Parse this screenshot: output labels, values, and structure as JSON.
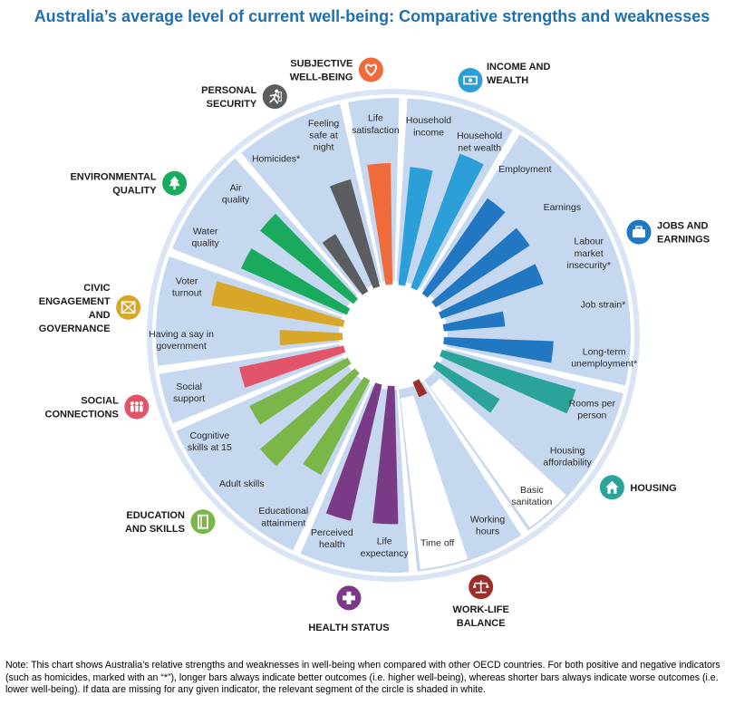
{
  "title": "Australia’s average level of current well-being: Comparative strengths and weaknesses",
  "note": "Note: This chart shows Australia’s relative strengths and weaknesses in well-being when compared with other OECD countries. For both positive and negative indicators (such as homicides, marked with an “*”), longer bars always indicate better outcomes (i.e. higher well-being), whereas shorter bars always indicate worse outcomes (i.e. lower well-being). If data are missing for any given indicator, the relevant segment of the circle is shaded in white.",
  "colors": {
    "segment_fill": "#c6d8f0",
    "ring": "#d9e5f5",
    "title": "#1f6fb2"
  },
  "chart_data": {
    "type": "radial-bar",
    "title": "Australia’s average level of current well-being: Comparative strengths and weaknesses",
    "scale": [
      0,
      1
    ],
    "dimensions": [
      {
        "name": "SUBJECTIVE WELL-BEING",
        "label_lines": [
          "SUBJECTIVE",
          "WELL-BEING"
        ],
        "icon": "heart-icon",
        "color": "#ef6b3b",
        "indicators": [
          {
            "label_lines": [
              "Life",
              "satisfaction"
            ],
            "value": 0.82,
            "missing": false
          }
        ]
      },
      {
        "name": "INCOME AND WEALTH",
        "label_lines": [
          "INCOME AND",
          "WEALTH"
        ],
        "icon": "money-icon",
        "color": "#2d9fd8",
        "indicators": [
          {
            "label_lines": [
              "Household",
              "income"
            ],
            "value": 0.8,
            "missing": false
          },
          {
            "label_lines": [
              "Household",
              "net wealth"
            ],
            "value": 0.96,
            "missing": false
          }
        ]
      },
      {
        "name": "JOBS AND EARNINGS",
        "label_lines": [
          "JOBS AND",
          "EARNINGS"
        ],
        "icon": "briefcase-icon",
        "color": "#2277c2",
        "indicators": [
          {
            "label_lines": [
              "Employment"
            ],
            "value": 0.78,
            "missing": false
          },
          {
            "label_lines": [
              "Earnings"
            ],
            "value": 0.76,
            "missing": false
          },
          {
            "label_lines": [
              "Labour",
              "market",
              "insecurity*"
            ],
            "value": 0.73,
            "missing": false
          },
          {
            "label_lines": [
              "Job strain*"
            ],
            "value": 0.42,
            "missing": false
          },
          {
            "label_lines": [
              "Long-term",
              "unemployment*"
            ],
            "value": 0.74,
            "missing": false
          }
        ]
      },
      {
        "name": "HOUSING",
        "label_lines": [
          "HOUSING"
        ],
        "icon": "house-icon",
        "color": "#2aa39a",
        "indicators": [
          {
            "label_lines": [
              "Rooms per",
              "person"
            ],
            "value": 0.94,
            "missing": false
          },
          {
            "label_lines": [
              "Housing",
              "affordability"
            ],
            "value": 0.5,
            "missing": false
          },
          {
            "label_lines": [
              "Basic",
              "sanitation"
            ],
            "value": 0,
            "missing": true
          }
        ]
      },
      {
        "name": "WORK-LIFE BALANCE",
        "label_lines": [
          "WORK-LIFE",
          "BALANCE"
        ],
        "icon": "scales-icon",
        "color": "#9b2f29",
        "indicators": [
          {
            "label_lines": [
              "Working",
              "hours"
            ],
            "value": 0.12,
            "missing": false
          },
          {
            "label_lines": [
              "Time off"
            ],
            "value": 0,
            "missing": true
          }
        ]
      },
      {
        "name": "HEALTH STATUS",
        "label_lines": [
          "HEALTH STATUS"
        ],
        "icon": "cross-icon",
        "color": "#7a3a86",
        "indicators": [
          {
            "label_lines": [
              "Life",
              "expectancy"
            ],
            "value": 0.93,
            "missing": false
          },
          {
            "label_lines": [
              "Perceived",
              "health"
            ],
            "value": 0.94,
            "missing": false
          }
        ]
      },
      {
        "name": "EDUCATION AND SKILLS",
        "label_lines": [
          "EDUCATION",
          "AND SKILLS"
        ],
        "icon": "book-icon",
        "color": "#7ab648",
        "indicators": [
          {
            "label_lines": [
              "Educational",
              "attainment"
            ],
            "value": 0.72,
            "missing": false
          },
          {
            "label_lines": [
              "Adult skills"
            ],
            "value": 0.84,
            "missing": false
          },
          {
            "label_lines": [
              "Cognitive",
              "skills at 15"
            ],
            "value": 0.74,
            "missing": false
          }
        ]
      },
      {
        "name": "SOCIAL CONNECTIONS",
        "label_lines": [
          "SOCIAL",
          "CONNECTIONS"
        ],
        "icon": "people-icon",
        "color": "#e2546a",
        "indicators": [
          {
            "label_lines": [
              "Social",
              "support"
            ],
            "value": 0.72,
            "missing": false
          }
        ]
      },
      {
        "name": "CIVIC ENGAGEMENT AND GOVERNANCE",
        "label_lines": [
          "CIVIC",
          "ENGAGEMENT",
          "AND",
          "GOVERNANCE"
        ],
        "icon": "ballot-icon",
        "color": "#d9a728",
        "indicators": [
          {
            "label_lines": [
              "Having a say in",
              "government"
            ],
            "value": 0.43,
            "missing": false
          },
          {
            "label_lines": [
              "Voter",
              "turnout"
            ],
            "value": 0.9,
            "missing": false
          }
        ]
      },
      {
        "name": "ENVIRONMENTAL QUALITY",
        "label_lines": [
          "ENVIRONMENTAL",
          "QUALITY"
        ],
        "icon": "tree-icon",
        "color": "#1aaa5e",
        "indicators": [
          {
            "label_lines": [
              "Water",
              "quality"
            ],
            "value": 0.78,
            "missing": false
          },
          {
            "label_lines": [
              "Air",
              "quality"
            ],
            "value": 0.8,
            "missing": false
          }
        ]
      },
      {
        "name": "PERSONAL SECURITY",
        "label_lines": [
          "PERSONAL",
          "SECURITY"
        ],
        "icon": "runner-icon",
        "color": "#5b5d61",
        "indicators": [
          {
            "label_lines": [
              "Homicides*"
            ],
            "value": 0.45,
            "missing": false
          },
          {
            "label_lines": [
              "Feeling",
              "safe at",
              "night"
            ],
            "value": 0.75,
            "missing": false
          }
        ]
      }
    ]
  }
}
